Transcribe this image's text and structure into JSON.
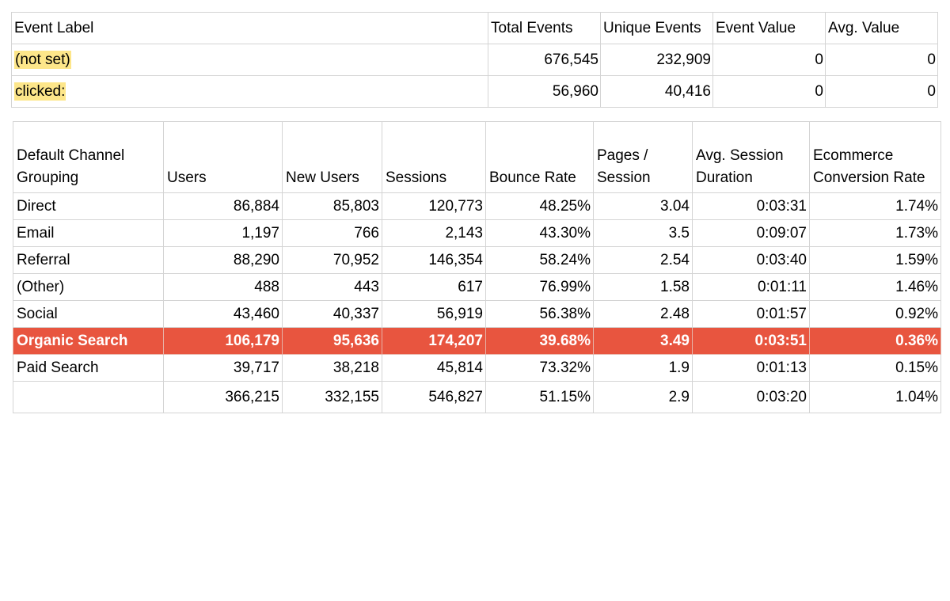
{
  "events": {
    "headers": [
      "Event Label",
      "Total Events",
      "Unique Events",
      "Event Value",
      "Avg. Value"
    ],
    "rows": [
      {
        "label": "(not set)",
        "total_events": "676,545",
        "unique_events": "232,909",
        "event_value": "0",
        "avg_value": "0"
      },
      {
        "label": "clicked:",
        "total_events": "56,960",
        "unique_events": "40,416",
        "event_value": "0",
        "avg_value": "0"
      }
    ],
    "highlight_color": "#fde68a"
  },
  "channels": {
    "headers": [
      [
        "Default Channel",
        "Grouping"
      ],
      [
        "",
        "Users"
      ],
      [
        "",
        "New Users"
      ],
      [
        "",
        "Sessions"
      ],
      [
        "",
        "Bounce Rate"
      ],
      [
        "Pages /",
        "Session"
      ],
      [
        "Avg. Session",
        "Duration"
      ],
      [
        "Ecommerce",
        "Conversion Rate"
      ]
    ],
    "rows": [
      {
        "channel": "Direct",
        "users": "86,884",
        "new_users": "85,803",
        "sessions": "120,773",
        "bounce_rate": "48.25%",
        "pages_per_session": "3.04",
        "avg_session_duration": "0:03:31",
        "conversion_rate": "1.74%"
      },
      {
        "channel": "Email",
        "users": "1,197",
        "new_users": "766",
        "sessions": "2,143",
        "bounce_rate": "43.30%",
        "pages_per_session": "3.5",
        "avg_session_duration": "0:09:07",
        "conversion_rate": "1.73%"
      },
      {
        "channel": "Referral",
        "users": "88,290",
        "new_users": "70,952",
        "sessions": "146,354",
        "bounce_rate": "58.24%",
        "pages_per_session": "2.54",
        "avg_session_duration": "0:03:40",
        "conversion_rate": "1.59%"
      },
      {
        "channel": "(Other)",
        "users": "488",
        "new_users": "443",
        "sessions": "617",
        "bounce_rate": "76.99%",
        "pages_per_session": "1.58",
        "avg_session_duration": "0:01:11",
        "conversion_rate": "1.46%"
      },
      {
        "channel": "Social",
        "users": "43,460",
        "new_users": "40,337",
        "sessions": "56,919",
        "bounce_rate": "56.38%",
        "pages_per_session": "2.48",
        "avg_session_duration": "0:01:57",
        "conversion_rate": "0.92%"
      },
      {
        "channel": "Organic Search",
        "users": "106,179",
        "new_users": "95,636",
        "sessions": "174,207",
        "bounce_rate": "39.68%",
        "pages_per_session": "3.49",
        "avg_session_duration": "0:03:51",
        "conversion_rate": "0.36%"
      },
      {
        "channel": "Paid Search",
        "users": "39,717",
        "new_users": "38,218",
        "sessions": "45,814",
        "bounce_rate": "73.32%",
        "pages_per_session": "1.9",
        "avg_session_duration": "0:01:13",
        "conversion_rate": "0.15%"
      }
    ],
    "totals": {
      "channel": "",
      "users": "366,215",
      "new_users": "332,155",
      "sessions": "546,827",
      "bounce_rate": "51.15%",
      "pages_per_session": "2.9",
      "avg_session_duration": "0:03:20",
      "conversion_rate": "1.04%"
    },
    "highlight_row_color": "#e8553f"
  }
}
